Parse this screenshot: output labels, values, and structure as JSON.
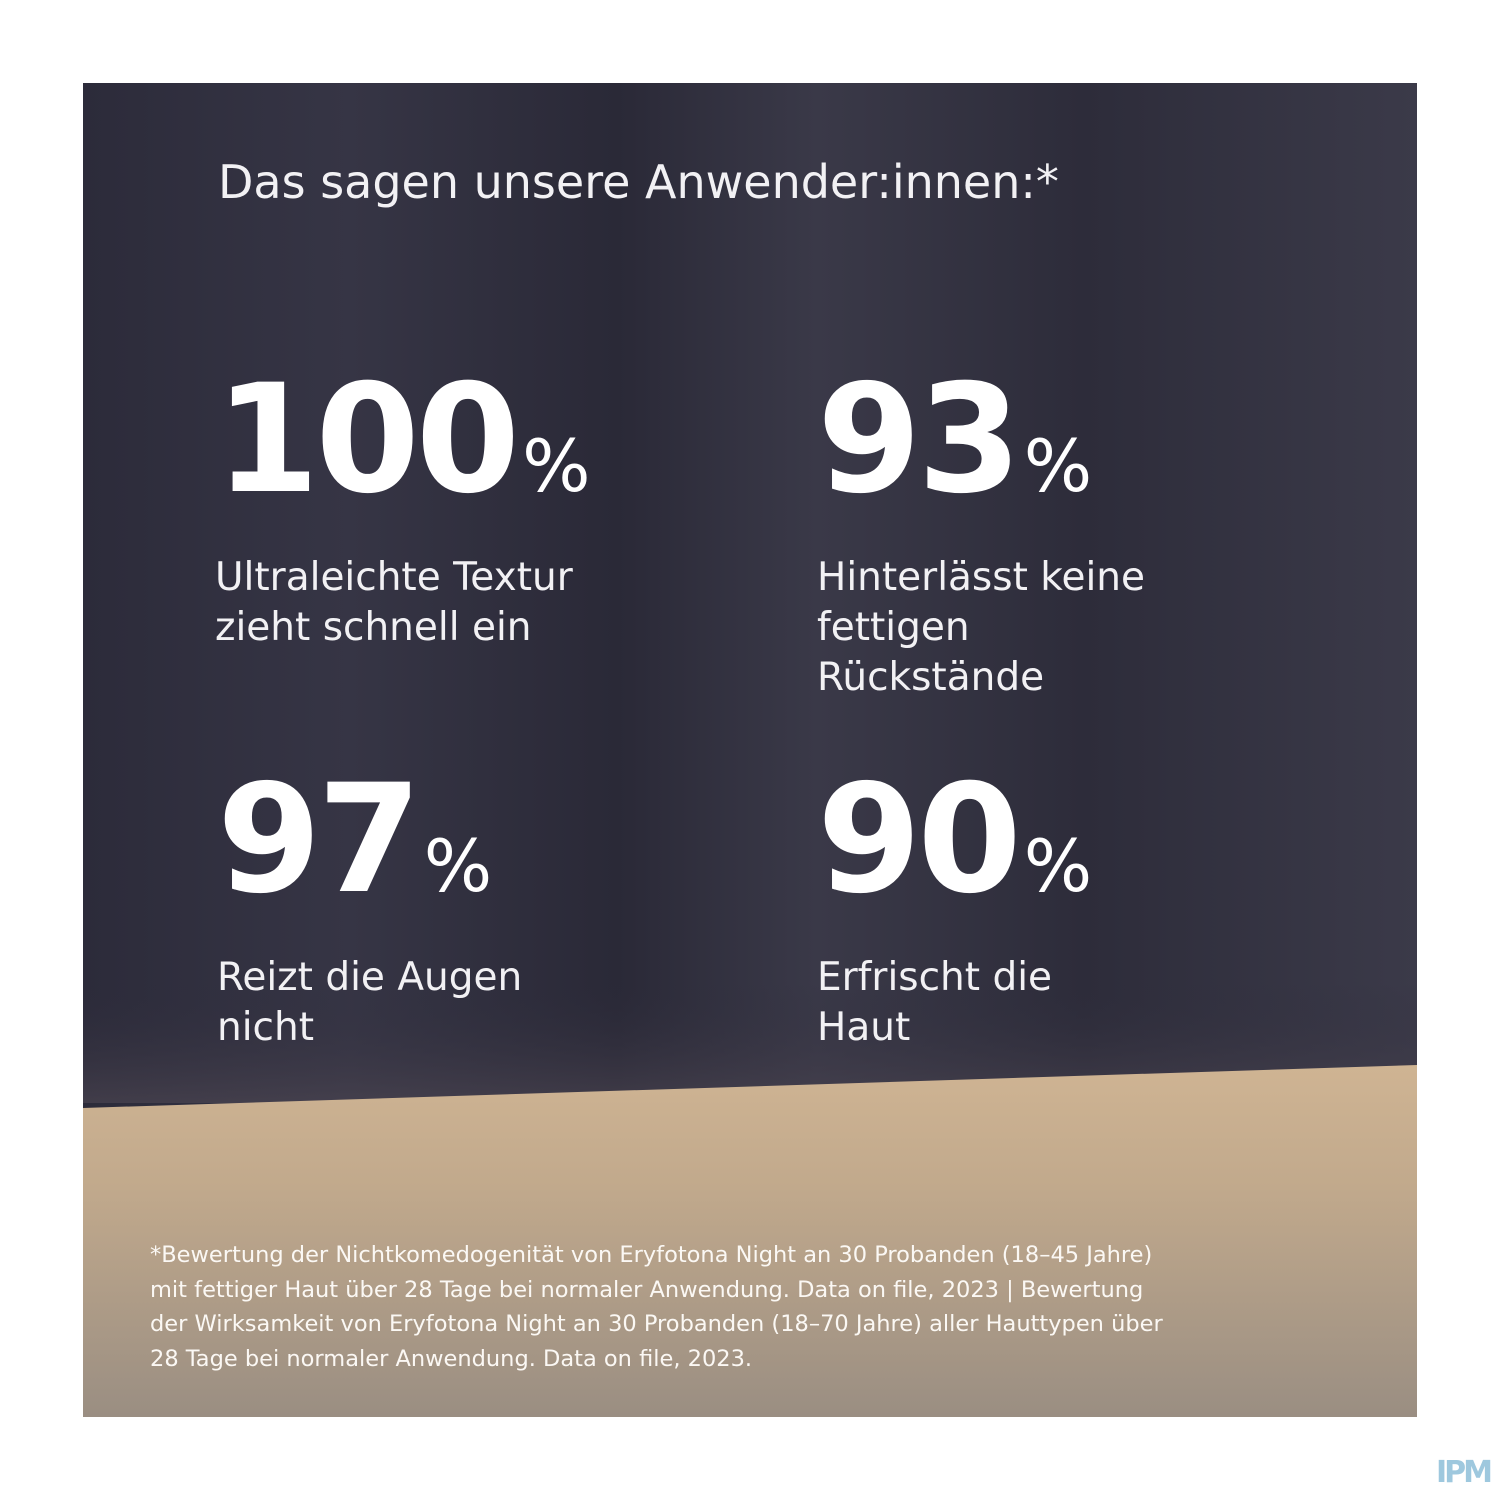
{
  "title": "Das sagen unsere Anwender:innen:*",
  "stats": [
    {
      "number": "100",
      "unit": "%",
      "lines": [
        "Ultraleichte Textur",
        "zieht schnell ein"
      ]
    },
    {
      "number": "93",
      "unit": "%",
      "lines": [
        "Hinterlässt keine",
        "fettigen",
        "Rückstände"
      ]
    },
    {
      "number": "97",
      "unit": "%",
      "lines": [
        "Reizt die Augen",
        "nicht"
      ]
    },
    {
      "number": "90",
      "unit": "%",
      "lines": [
        "Erfrischt die",
        "Haut"
      ]
    }
  ],
  "footnote": [
    "*Bewertung der Nichtkomedogenität von Eryfotona Night an 30 Probanden (18–45 Jahre)",
    "mit fettiger Haut über 28 Tage bei normaler Anwendung. Data on file, 2023 | Bewertung",
    "der Wirksamkeit von Eryfotona Night an 30 Probanden (18–70 Jahre) aller Hauttypen über",
    "28 Tage bei normaler Anwendung. Data on file, 2023."
  ],
  "logo": "IPM"
}
